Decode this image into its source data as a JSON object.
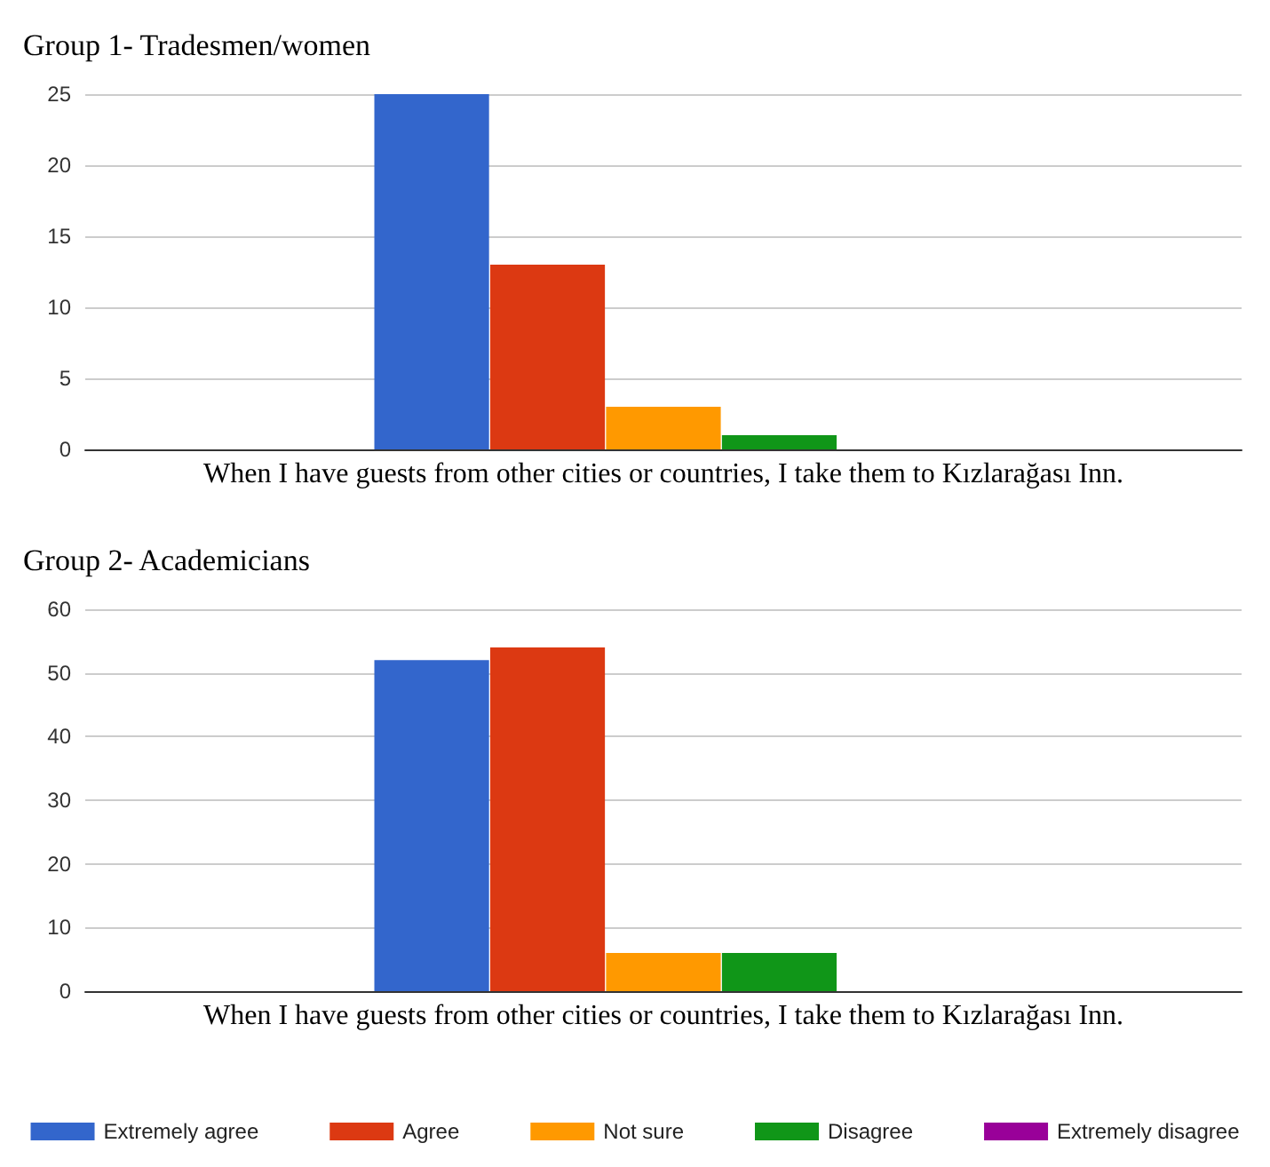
{
  "chart_data": [
    {
      "type": "bar",
      "title": "Group 1- Tradesmen/women",
      "categories": [
        "When I have guests from other cities or countries, I take them to Kızlarağası Inn."
      ],
      "series": [
        {
          "color": "#3366cc",
          "values": [
            25
          ]
        },
        {
          "color": "#dc3912",
          "values": [
            13
          ]
        },
        {
          "color": "#ff9900",
          "values": [
            3
          ]
        },
        {
          "color": "#109618",
          "values": [
            1
          ]
        },
        {
          "color": "#990099",
          "values": [
            0
          ]
        }
      ],
      "ylim": [
        0,
        25
      ],
      "yticks": [
        0,
        5,
        10,
        15,
        20,
        25
      ],
      "grid": "y",
      "legend": false
    },
    {
      "type": "bar",
      "title": "Group 2- Academicians",
      "categories": [
        "When I have guests from other cities or countries, I take them to Kızlarağası Inn."
      ],
      "series": [
        {
          "name": "Extremely agree",
          "color": "#3366cc",
          "values": [
            52
          ]
        },
        {
          "name": "Agree",
          "color": "#dc3912",
          "values": [
            54
          ]
        },
        {
          "name": "Not sure",
          "color": "#ff9900",
          "values": [
            6
          ]
        },
        {
          "name": "Disagree",
          "color": "#109618",
          "values": [
            6
          ]
        },
        {
          "name": "Extremely disagree",
          "color": "#990099",
          "values": [
            0
          ]
        }
      ],
      "ylim": [
        0,
        60
      ],
      "yticks": [
        0,
        10,
        20,
        30,
        40,
        50,
        60
      ],
      "grid": "y",
      "legend": "bottom"
    }
  ]
}
